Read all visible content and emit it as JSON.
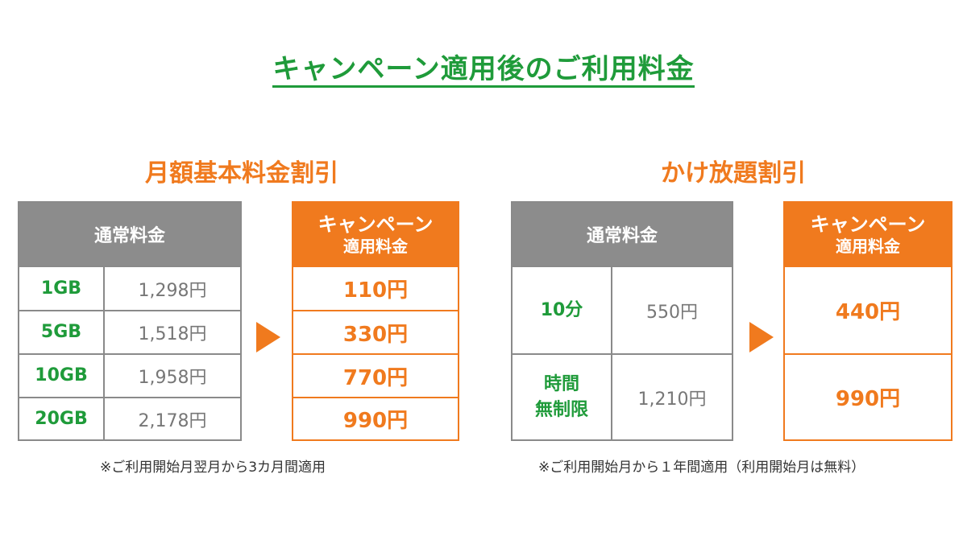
{
  "title": "キャンペーン適用後のご利用料金",
  "left": {
    "section_title": "月額基本料金割引",
    "normal_header": "通常料金",
    "campaign_header_line1": "キャンペーン",
    "campaign_header_line2": "適用料金",
    "rows": [
      {
        "plan": "1GB",
        "normal": "1,298円",
        "campaign": "110円"
      },
      {
        "plan": "5GB",
        "normal": "1,518円",
        "campaign": "330円"
      },
      {
        "plan": "10GB",
        "normal": "1,958円",
        "campaign": "770円"
      },
      {
        "plan": "20GB",
        "normal": "2,178円",
        "campaign": "990円"
      }
    ],
    "note": "※ご利用開始月翌月から3カ月間適用"
  },
  "right": {
    "section_title": "かけ放題割引",
    "normal_header": "通常料金",
    "campaign_header_line1": "キャンペーン",
    "campaign_header_line2": "適用料金",
    "rows": [
      {
        "plan_line1": "10分",
        "plan_line2": "",
        "normal": "550円",
        "campaign": "440円"
      },
      {
        "plan_line1": "時間",
        "plan_line2": "無制限",
        "normal": "1,210円",
        "campaign": "990円"
      }
    ],
    "note": "※ご利用開始月から１年間適用（利用開始月は無料）"
  },
  "colors": {
    "green": "#1f9b3a",
    "orange": "#f07a1e",
    "grey_header": "#8c8c8c",
    "grey_text": "#777777"
  }
}
